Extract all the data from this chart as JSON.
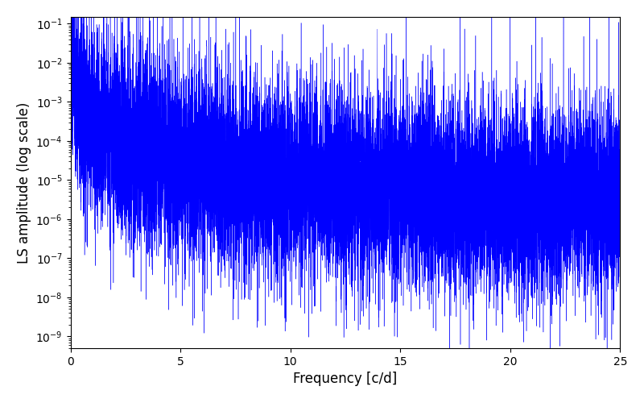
{
  "xlabel": "Frequency [c/d]",
  "ylabel": "LS amplitude (log scale)",
  "line_color": "#0000ff",
  "linewidth": 0.3,
  "xlim": [
    0,
    25
  ],
  "ylim": [
    5e-10,
    0.15
  ],
  "freq_max": 25.0,
  "num_points": 15000,
  "seed": 7,
  "background_color": "#ffffff",
  "figsize": [
    8.0,
    5.0
  ],
  "dpi": 100
}
